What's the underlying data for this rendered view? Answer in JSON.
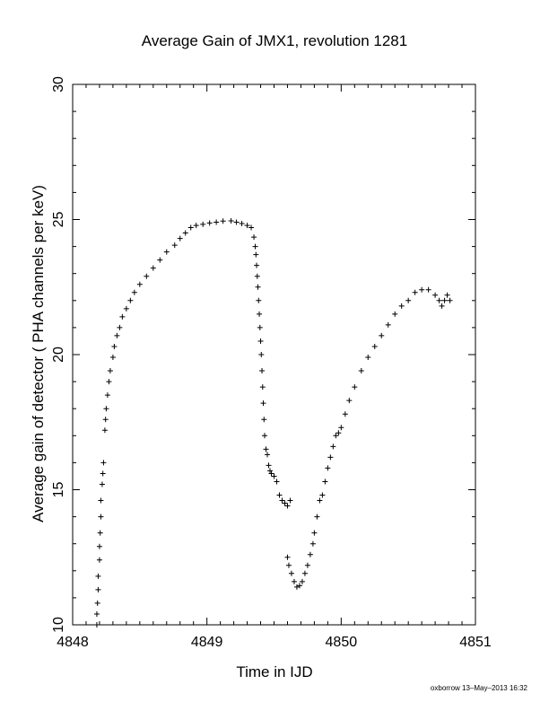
{
  "chart_data": {
    "type": "scatter",
    "title": "Average Gain of JMX1, revolution 1281",
    "xlabel": "Time in IJD",
    "ylabel": "Average gain of detector ( PHA channels per keV)",
    "xlim": [
      4848,
      4851
    ],
    "ylim": [
      10,
      30
    ],
    "x_ticks": [
      "4848",
      "4849",
      "4850",
      "4851"
    ],
    "y_ticks": [
      "10",
      "15",
      "20",
      "25",
      "30"
    ],
    "marker": "plus",
    "grid": false,
    "series": [
      {
        "points": [
          [
            4848.18,
            10.0
          ],
          [
            4848.18,
            10.4
          ],
          [
            4848.185,
            10.8
          ],
          [
            4848.19,
            11.3
          ],
          [
            4848.19,
            11.8
          ],
          [
            4848.2,
            12.4
          ],
          [
            4848.2,
            12.9
          ],
          [
            4848.205,
            13.4
          ],
          [
            4848.21,
            14.0
          ],
          [
            4848.21,
            14.6
          ],
          [
            4848.22,
            15.2
          ],
          [
            4848.225,
            15.6
          ],
          [
            4848.23,
            16.0
          ],
          [
            4848.24,
            17.2
          ],
          [
            4848.245,
            17.6
          ],
          [
            4848.25,
            18.0
          ],
          [
            4848.26,
            18.5
          ],
          [
            4848.27,
            19.0
          ],
          [
            4848.28,
            19.4
          ],
          [
            4848.3,
            19.9
          ],
          [
            4848.31,
            20.3
          ],
          [
            4848.33,
            20.7
          ],
          [
            4848.35,
            21.0
          ],
          [
            4848.37,
            21.4
          ],
          [
            4848.4,
            21.7
          ],
          [
            4848.43,
            22.0
          ],
          [
            4848.46,
            22.3
          ],
          [
            4848.5,
            22.6
          ],
          [
            4848.55,
            22.9
          ],
          [
            4848.6,
            23.2
          ],
          [
            4848.65,
            23.5
          ],
          [
            4848.7,
            23.8
          ],
          [
            4848.76,
            24.05
          ],
          [
            4848.8,
            24.3
          ],
          [
            4848.84,
            24.5
          ],
          [
            4848.88,
            24.7
          ],
          [
            4848.92,
            24.78
          ],
          [
            4848.97,
            24.82
          ],
          [
            4849.02,
            24.87
          ],
          [
            4849.07,
            24.9
          ],
          [
            4849.12,
            24.94
          ],
          [
            4849.18,
            24.95
          ],
          [
            4849.22,
            24.9
          ],
          [
            4849.26,
            24.85
          ],
          [
            4849.3,
            24.78
          ],
          [
            4849.33,
            24.7
          ],
          [
            4849.35,
            24.35
          ],
          [
            4849.36,
            24.0
          ],
          [
            4849.365,
            23.7
          ],
          [
            4849.37,
            23.3
          ],
          [
            4849.375,
            22.9
          ],
          [
            4849.38,
            22.5
          ],
          [
            4849.385,
            22.0
          ],
          [
            4849.39,
            21.5
          ],
          [
            4849.395,
            21.0
          ],
          [
            4849.4,
            20.5
          ],
          [
            4849.405,
            20.0
          ],
          [
            4849.41,
            19.4
          ],
          [
            4849.415,
            18.8
          ],
          [
            4849.42,
            18.2
          ],
          [
            4849.425,
            17.6
          ],
          [
            4849.43,
            17.0
          ],
          [
            4849.44,
            16.5
          ],
          [
            4849.45,
            16.3
          ],
          [
            4849.46,
            15.9
          ],
          [
            4849.47,
            15.7
          ],
          [
            4849.48,
            15.6
          ],
          [
            4849.5,
            15.5
          ],
          [
            4849.52,
            15.3
          ],
          [
            4849.54,
            14.8
          ],
          [
            4849.56,
            14.6
          ],
          [
            4849.58,
            14.5
          ],
          [
            4849.6,
            14.4
          ],
          [
            4849.62,
            14.6
          ],
          [
            4849.6,
            12.5
          ],
          [
            4849.61,
            12.2
          ],
          [
            4849.63,
            11.9
          ],
          [
            4849.65,
            11.6
          ],
          [
            4849.67,
            11.4
          ],
          [
            4849.69,
            11.45
          ],
          [
            4849.71,
            11.6
          ],
          [
            4849.73,
            11.9
          ],
          [
            4849.75,
            12.2
          ],
          [
            4849.77,
            12.6
          ],
          [
            4849.79,
            13.0
          ],
          [
            4849.8,
            13.4
          ],
          [
            4849.82,
            14.0
          ],
          [
            4849.84,
            14.6
          ],
          [
            4849.86,
            14.8
          ],
          [
            4849.88,
            15.3
          ],
          [
            4849.9,
            15.8
          ],
          [
            4849.92,
            16.2
          ],
          [
            4849.94,
            16.6
          ],
          [
            4849.96,
            17.0
          ],
          [
            4849.98,
            17.1
          ],
          [
            4850.0,
            17.3
          ],
          [
            4850.03,
            17.8
          ],
          [
            4850.06,
            18.3
          ],
          [
            4850.1,
            18.8
          ],
          [
            4850.15,
            19.4
          ],
          [
            4850.2,
            19.9
          ],
          [
            4850.25,
            20.3
          ],
          [
            4850.3,
            20.7
          ],
          [
            4850.35,
            21.1
          ],
          [
            4850.4,
            21.5
          ],
          [
            4850.45,
            21.8
          ],
          [
            4850.5,
            22.0
          ],
          [
            4850.55,
            22.3
          ],
          [
            4850.6,
            22.4
          ],
          [
            4850.65,
            22.4
          ],
          [
            4850.7,
            22.2
          ],
          [
            4850.73,
            22.0
          ],
          [
            4850.75,
            21.8
          ],
          [
            4850.77,
            22.0
          ],
          [
            4850.79,
            22.2
          ],
          [
            4850.81,
            22.0
          ]
        ]
      }
    ]
  },
  "footer": {
    "stamp": "oxborrow 13–May–2013 16:32"
  }
}
